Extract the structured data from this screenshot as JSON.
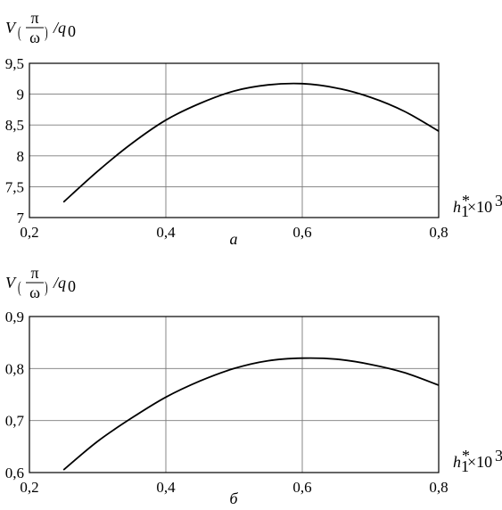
{
  "chart_data": [
    {
      "type": "line",
      "panel_label": "а",
      "ylabel_prefix": "V",
      "ylabel_num": "π",
      "ylabel_den": "ω",
      "ylabel_suffix": "/q",
      "ylabel_sub": "0",
      "xlabel_base": "h",
      "xlabel_sub": "1",
      "xlabel_sup": "*",
      "xlabel_mult": "×10",
      "xlabel_exp": "3",
      "xlim": [
        0.2,
        0.8
      ],
      "ylim": [
        7,
        9.5
      ],
      "x_ticks": [
        "0,2",
        "0,4",
        "0,6",
        "0,8"
      ],
      "y_ticks": [
        "7",
        "7,5",
        "8",
        "8,5",
        "9",
        "9,5"
      ],
      "grid": true,
      "series": [
        {
          "x": [
            0.25,
            0.3,
            0.35,
            0.4,
            0.45,
            0.5,
            0.55,
            0.6,
            0.65,
            0.7,
            0.75,
            0.8
          ],
          "y": [
            7.25,
            7.75,
            8.2,
            8.58,
            8.85,
            9.05,
            9.15,
            9.17,
            9.1,
            8.95,
            8.72,
            8.4
          ]
        }
      ]
    },
    {
      "type": "line",
      "panel_label": "б",
      "ylabel_prefix": "V",
      "ylabel_num": "π",
      "ylabel_den": "ω",
      "ylabel_suffix": "/q",
      "ylabel_sub": "0",
      "xlabel_base": "h",
      "xlabel_sub": "1",
      "xlabel_sup": "*",
      "xlabel_mult": "×10",
      "xlabel_exp": "3",
      "xlim": [
        0.2,
        0.8
      ],
      "ylim": [
        0.6,
        0.9
      ],
      "x_ticks": [
        "0,2",
        "0,4",
        "0,6",
        "0,8"
      ],
      "y_ticks": [
        "0,6",
        "0,7",
        "0,8",
        "0,9"
      ],
      "grid": true,
      "series": [
        {
          "x": [
            0.25,
            0.3,
            0.35,
            0.4,
            0.45,
            0.5,
            0.55,
            0.6,
            0.65,
            0.7,
            0.75,
            0.8
          ],
          "y": [
            0.605,
            0.66,
            0.705,
            0.745,
            0.776,
            0.8,
            0.815,
            0.82,
            0.818,
            0.808,
            0.792,
            0.768
          ]
        }
      ]
    }
  ]
}
